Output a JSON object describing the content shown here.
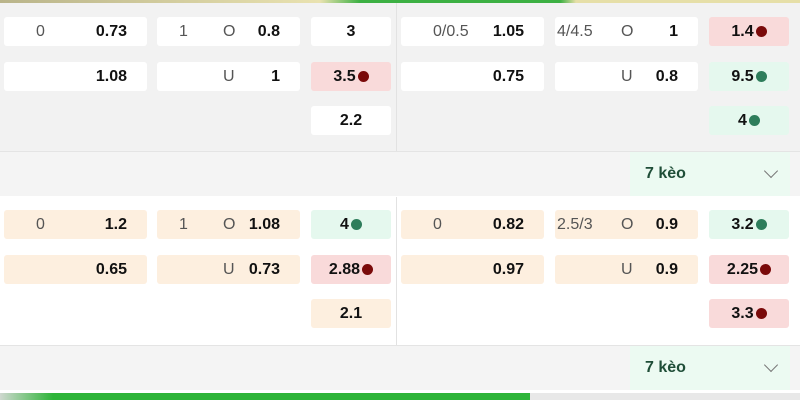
{
  "more_label": "7 kèo",
  "colors": {
    "red_dot": "#7a0a0a",
    "green_dot": "#2e7d5b",
    "up_bg": "#e5f8ee",
    "down_bg": "#f9dada"
  },
  "blocks": [
    {
      "left": {
        "hdp": [
          {
            "line": "0",
            "odds": "0.73"
          },
          {
            "line": "",
            "odds": "1.08"
          }
        ],
        "ou": [
          {
            "line": "1",
            "side": "O",
            "odds": "0.8"
          },
          {
            "line": "",
            "side": "U",
            "odds": "1"
          }
        ],
        "x12": [
          {
            "odds": "3",
            "trend": ""
          },
          {
            "odds": "3.5",
            "trend": "down"
          },
          {
            "odds": "2.2",
            "trend": ""
          }
        ]
      },
      "right": {
        "hdp": [
          {
            "line": "0/0.5",
            "odds": "1.05"
          },
          {
            "line": "",
            "odds": "0.75"
          }
        ],
        "ou": [
          {
            "line": "4/4.5",
            "side": "O",
            "odds": "1"
          },
          {
            "line": "",
            "side": "U",
            "odds": "0.8"
          }
        ],
        "x12": [
          {
            "odds": "1.4",
            "trend": "down"
          },
          {
            "odds": "9.5",
            "trend": "up"
          },
          {
            "odds": "4",
            "trend": "up"
          }
        ]
      }
    },
    {
      "left": {
        "hdp": [
          {
            "line": "0",
            "odds": "1.2"
          },
          {
            "line": "",
            "odds": "0.65"
          }
        ],
        "ou": [
          {
            "line": "1",
            "side": "O",
            "odds": "1.08"
          },
          {
            "line": "",
            "side": "U",
            "odds": "0.73"
          }
        ],
        "x12": [
          {
            "odds": "4",
            "trend": "up"
          },
          {
            "odds": "2.88",
            "trend": "down"
          },
          {
            "odds": "2.1",
            "trend": ""
          }
        ]
      },
      "right": {
        "hdp": [
          {
            "line": "0",
            "odds": "0.82"
          },
          {
            "line": "",
            "odds": "0.97"
          }
        ],
        "ou": [
          {
            "line": "2.5/3",
            "side": "O",
            "odds": "0.9"
          },
          {
            "line": "",
            "side": "U",
            "odds": "0.9"
          }
        ],
        "x12": [
          {
            "odds": "3.2",
            "trend": "up"
          },
          {
            "odds": "2.25",
            "trend": "down"
          },
          {
            "odds": "3.3",
            "trend": "down"
          }
        ]
      }
    }
  ]
}
